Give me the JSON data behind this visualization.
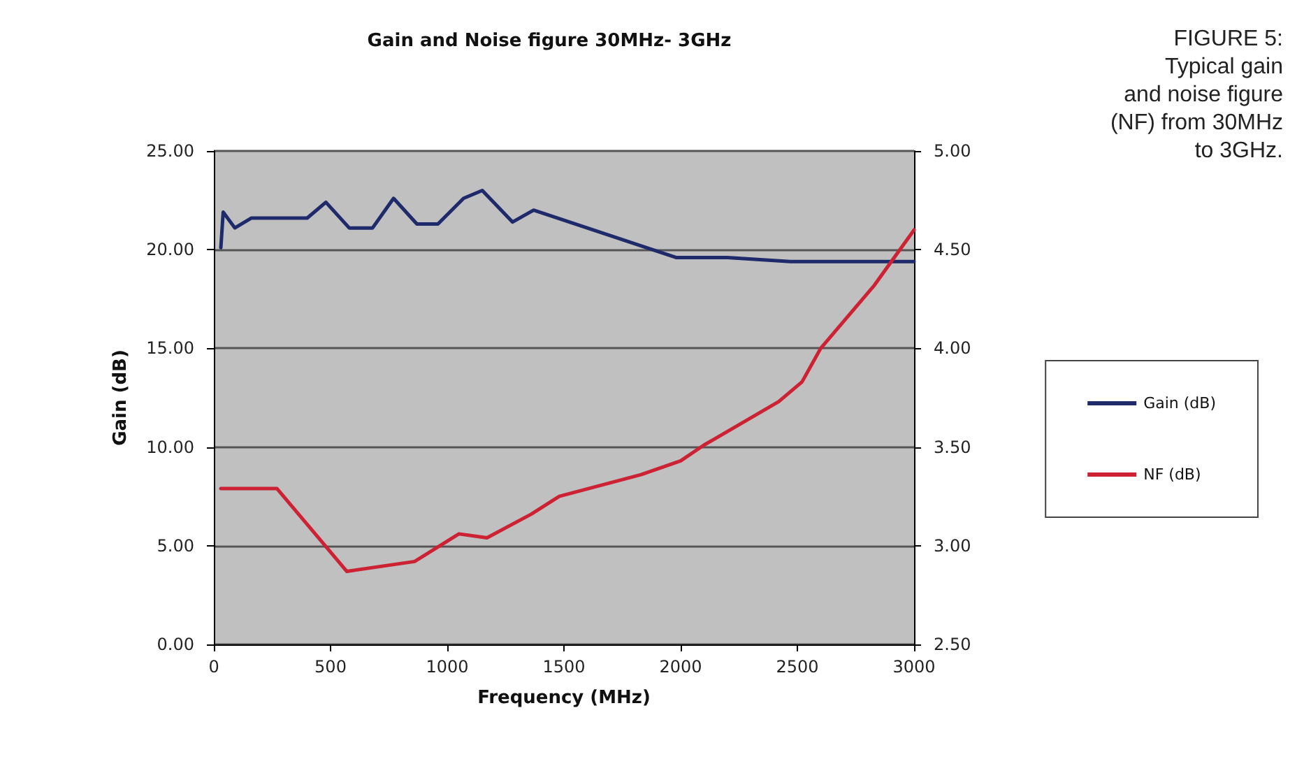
{
  "chart_data": {
    "type": "line",
    "title": "Gain and Noise figure 30MHz- 3GHz",
    "xlabel": "Frequency (MHz)",
    "ylabel": "Gain (dB)",
    "annotations": [
      "FIGURE 5:\nTypical gain\nand noise figure\n(NF) from 30MHz\nto 3GHz."
    ],
    "xlim": [
      0,
      3000
    ],
    "xticks": [
      0,
      500,
      1000,
      1500,
      2000,
      2500,
      3000
    ],
    "ylim": [
      0,
      25
    ],
    "yticks": [
      {
        "value": 0,
        "label": "0.00"
      },
      {
        "value": 5,
        "label": "5.00"
      },
      {
        "value": 10,
        "label": "10.00"
      },
      {
        "value": 15,
        "label": "15.00"
      },
      {
        "value": 20,
        "label": "20.00"
      },
      {
        "value": 25,
        "label": "25.00"
      }
    ],
    "y2lim": [
      2.5,
      5
    ],
    "y2ticks": [
      {
        "value": 2.5,
        "label": "2.50"
      },
      {
        "value": 3,
        "label": "3.00"
      },
      {
        "value": 3.5,
        "label": "3.50"
      },
      {
        "value": 4,
        "label": "4.00"
      },
      {
        "value": 4.5,
        "label": "4.50"
      },
      {
        "value": 5,
        "label": "5.00"
      }
    ],
    "grid": "y",
    "legend": "right",
    "marker": "none",
    "line_style": "solid",
    "series": [
      {
        "name": "Gain (dB)",
        "color": "#1f2a6b",
        "x": [
          30,
          40,
          90,
          160,
          400,
          480,
          580,
          680,
          770,
          870,
          960,
          1070,
          1150,
          1280,
          1370,
          1980,
          2200,
          2470,
          3000
        ],
        "values": [
          20.1,
          21.9,
          21.1,
          21.6,
          21.6,
          22.4,
          21.1,
          21.1,
          22.6,
          21.3,
          21.3,
          22.6,
          23.0,
          21.4,
          22.0,
          19.6,
          19.6,
          19.4,
          19.4
        ]
      },
      {
        "name": "NF (dB)",
        "color": "#cc2233",
        "axis": "y2",
        "x": [
          30,
          270,
          570,
          860,
          1050,
          1170,
          1360,
          1480,
          1830,
          2000,
          2100,
          2420,
          2520,
          2600,
          2830,
          3000
        ],
        "values": [
          3.29,
          3.29,
          2.87,
          2.92,
          3.06,
          3.04,
          3.16,
          3.25,
          3.36,
          3.43,
          3.51,
          3.73,
          3.83,
          4.0,
          4.32,
          4.6
        ]
      }
    ]
  }
}
